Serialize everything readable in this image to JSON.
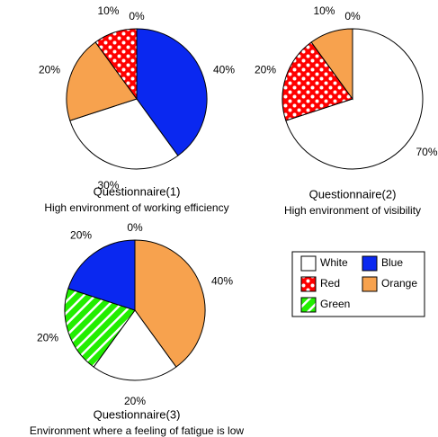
{
  "chart_data": [
    {
      "type": "pie",
      "title": "Questionnaire(1)",
      "subtitle": "High environment of working efficiency",
      "categories": [
        "Blue",
        "White",
        "Orange",
        "Red",
        "Green"
      ],
      "values": [
        40,
        30,
        20,
        10,
        0
      ],
      "value_labels": [
        "40%",
        "30%",
        "20%",
        "10%",
        "0%"
      ]
    },
    {
      "type": "pie",
      "title": "Questionnaire(2)",
      "subtitle": "High environment of visibility",
      "categories": [
        "White",
        "Red",
        "Orange",
        "Blue"
      ],
      "values": [
        70,
        20,
        10,
        0
      ],
      "value_labels": [
        "70%",
        "20%",
        "10%",
        "0%"
      ]
    },
    {
      "type": "pie",
      "title": "Questionnaire(3)",
      "subtitle": "Environment where a feeling of fatigue is low",
      "categories": [
        "Orange",
        "White",
        "Green",
        "Blue",
        "Red"
      ],
      "values": [
        40,
        20,
        20,
        20,
        0
      ],
      "value_labels": [
        "40%",
        "20%",
        "20%",
        "20%",
        "0%"
      ]
    }
  ],
  "legend": {
    "entries": [
      {
        "name": "White",
        "color": "#ffffff",
        "pattern": "none"
      },
      {
        "name": "Blue",
        "color": "#0a28f0",
        "pattern": "none"
      },
      {
        "name": "Red",
        "color": "#ff0000",
        "pattern": "dots"
      },
      {
        "name": "Orange",
        "color": "#f7a24e",
        "pattern": "none"
      },
      {
        "name": "Green",
        "color": "#22ee00",
        "pattern": "stripes"
      }
    ]
  }
}
